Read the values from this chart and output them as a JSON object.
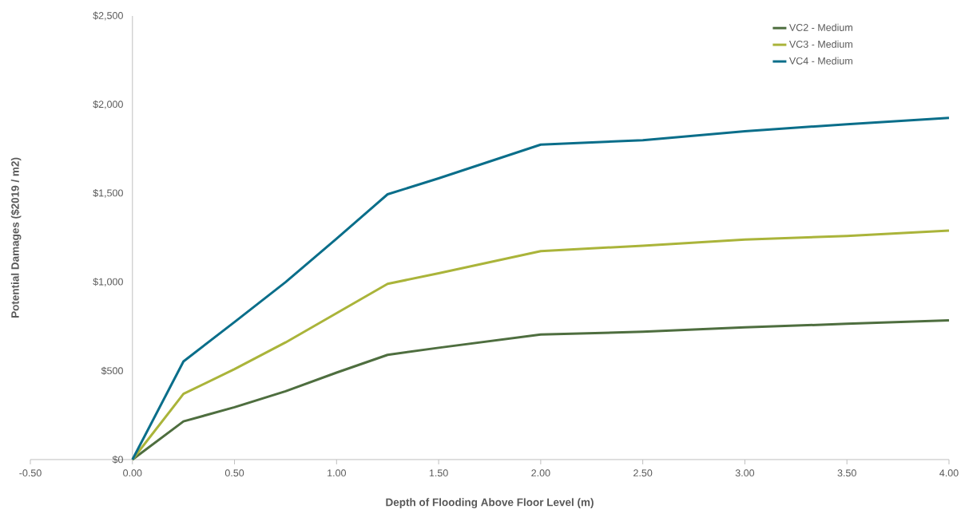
{
  "chart_data": {
    "type": "line",
    "xlabel": "Depth of Flooding Above Floor Level (m)",
    "ylabel": "Potential Damages ($2019 / m2)",
    "x": [
      0,
      0.25,
      0.5,
      0.75,
      1.0,
      1.25,
      1.5,
      2.0,
      2.5,
      3.0,
      3.5,
      4.0
    ],
    "series": [
      {
        "name": "VC2 - Medium",
        "color": "#4e6e3f",
        "values": [
          0,
          215,
          295,
          385,
          490,
          590,
          630,
          705,
          720,
          745,
          765,
          785
        ]
      },
      {
        "name": "VC3 - Medium",
        "color": "#aab43a",
        "values": [
          0,
          370,
          510,
          660,
          825,
          990,
          1050,
          1175,
          1205,
          1240,
          1260,
          1290
        ]
      },
      {
        "name": "VC4 - Medium",
        "color": "#0a6e8a",
        "values": [
          0,
          553,
          775,
          1000,
          1245,
          1495,
          1585,
          1775,
          1800,
          1850,
          1890,
          1925
        ]
      }
    ],
    "xlim": [
      -0.5,
      4.0
    ],
    "ylim": [
      0,
      2500
    ],
    "xticks": [
      {
        "value": -0.5,
        "label": "-0.50"
      },
      {
        "value": 0,
        "label": "0.00"
      },
      {
        "value": 0.5,
        "label": "0.50"
      },
      {
        "value": 1.0,
        "label": "1.00"
      },
      {
        "value": 1.5,
        "label": "1.50"
      },
      {
        "value": 2.0,
        "label": "2.00"
      },
      {
        "value": 2.5,
        "label": "2.50"
      },
      {
        "value": 3.0,
        "label": "3.00"
      },
      {
        "value": 3.5,
        "label": "3.50"
      },
      {
        "value": 4.0,
        "label": "4.00"
      }
    ],
    "yticks": [
      {
        "value": 0,
        "label": "$0"
      },
      {
        "value": 500,
        "label": "$500"
      },
      {
        "value": 1000,
        "label": "$1,000"
      },
      {
        "value": 1500,
        "label": "$1,500"
      },
      {
        "value": 2000,
        "label": "$2,000"
      },
      {
        "value": 2500,
        "label": "$2,500"
      }
    ],
    "grid": false,
    "legend": "top right",
    "marker": "none",
    "line_style": "solid"
  }
}
